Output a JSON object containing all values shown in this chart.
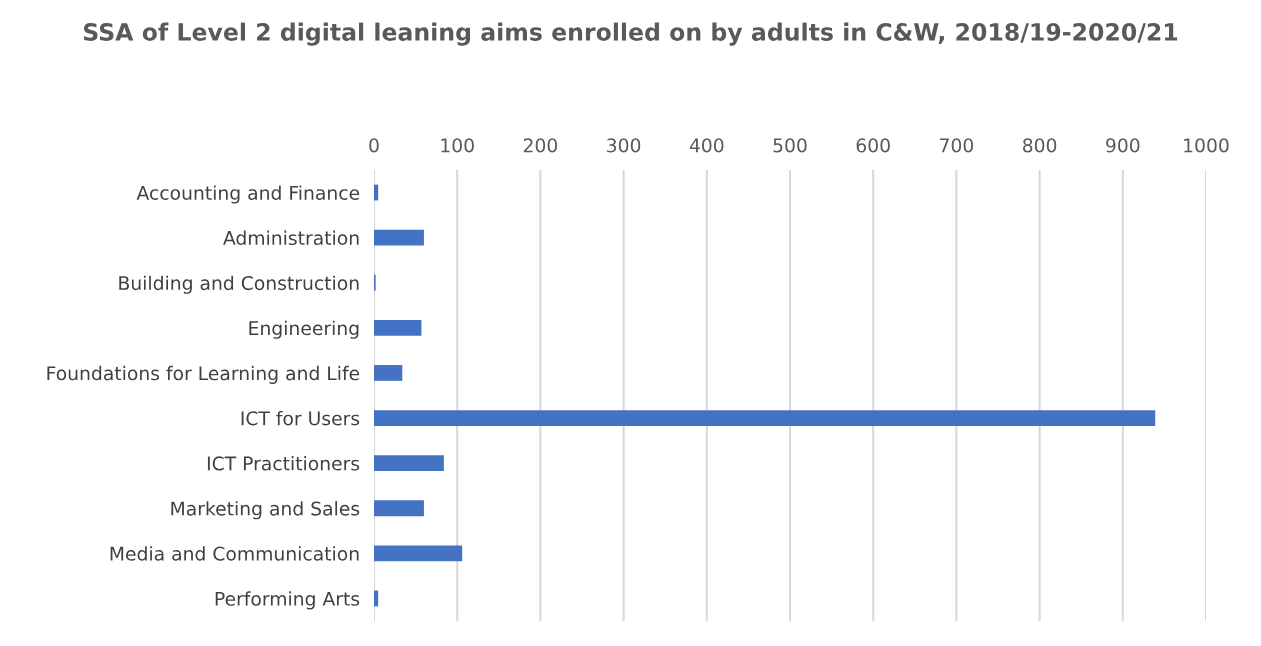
{
  "chart_data": {
    "type": "bar",
    "orientation": "horizontal",
    "title": "SSA of Level 2 digital leaning aims enrolled on by adults in C&W, 2018/19-2020/21",
    "categories": [
      "Accounting and Finance",
      "Administration",
      "Building and Construction",
      "Engineering",
      "Foundations for Learning and Life",
      "ICT for Users",
      "ICT Practitioners",
      "Marketing and Sales",
      "Media and Communication",
      "Performing Arts"
    ],
    "values": [
      5,
      60,
      2,
      57,
      34,
      939,
      84,
      60,
      106,
      5
    ],
    "color": "#4472c4",
    "xlim": [
      0,
      1000
    ],
    "xticks": [
      0,
      100,
      200,
      300,
      400,
      500,
      600,
      700,
      800,
      900,
      1000
    ],
    "grid": "x",
    "legend": false
  }
}
